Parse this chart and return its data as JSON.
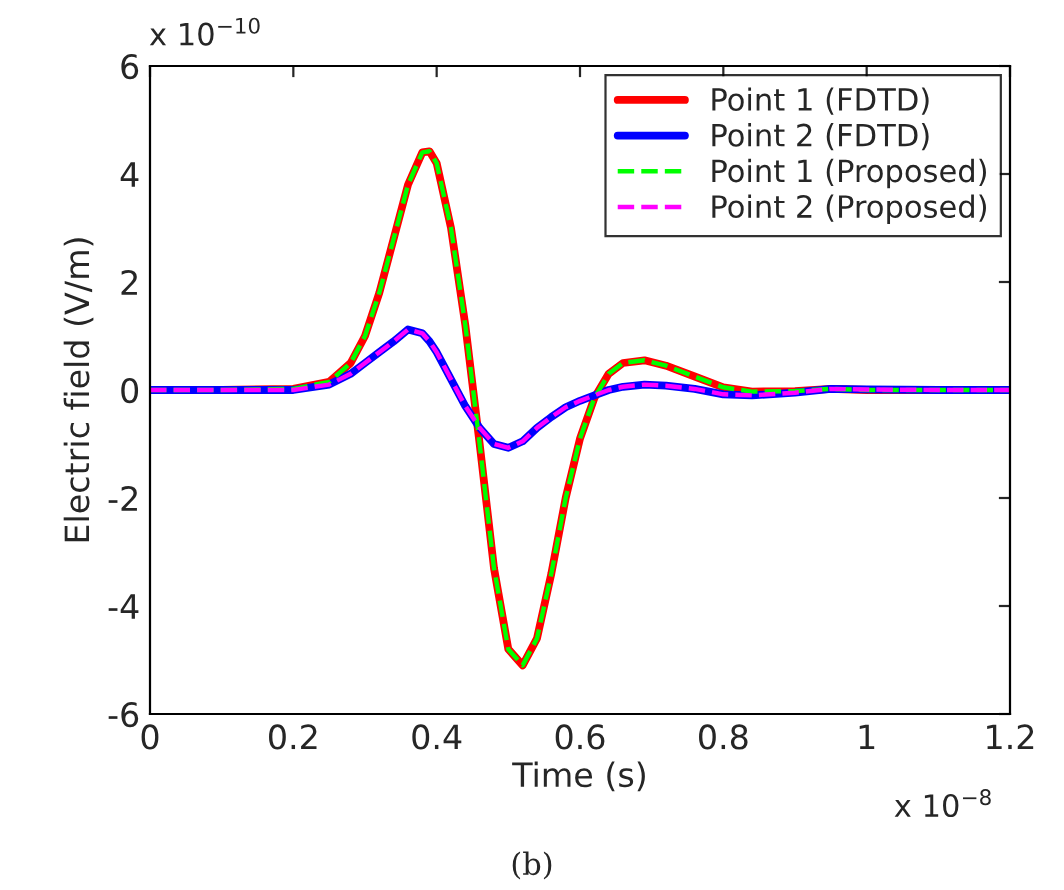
{
  "chart_data": {
    "type": "line",
    "xlabel": "Time (s)",
    "ylabel": "Electric field (V/m)",
    "x": [
      0,
      0.1,
      0.2,
      0.25,
      0.28,
      0.3,
      0.32,
      0.34,
      0.36,
      0.38,
      0.39,
      0.4,
      0.42,
      0.44,
      0.46,
      0.48,
      0.5,
      0.52,
      0.54,
      0.56,
      0.58,
      0.6,
      0.62,
      0.64,
      0.66,
      0.69,
      0.72,
      0.76,
      0.8,
      0.84,
      0.9,
      0.95,
      1.0,
      1.1,
      1.2
    ],
    "series": [
      {
        "name": "Point 1 (FDTD)",
        "color": "#ff0000",
        "line_style": "solid",
        "values": [
          0,
          0,
          0.02,
          0.15,
          0.5,
          1.0,
          1.8,
          2.8,
          3.8,
          4.4,
          4.42,
          4.2,
          3.0,
          1.2,
          -1.0,
          -3.3,
          -4.8,
          -5.1,
          -4.6,
          -3.4,
          -2.0,
          -0.9,
          -0.15,
          0.3,
          0.5,
          0.55,
          0.45,
          0.25,
          0.05,
          -0.03,
          -0.02,
          0.02,
          0,
          0,
          0
        ]
      },
      {
        "name": "Point 2 (FDTD)",
        "color": "#0000ff",
        "line_style": "solid",
        "values": [
          0,
          0,
          0,
          0.1,
          0.3,
          0.5,
          0.7,
          0.9,
          1.12,
          1.05,
          0.9,
          0.7,
          0.2,
          -0.3,
          -0.7,
          -1.0,
          -1.07,
          -0.95,
          -0.7,
          -0.5,
          -0.32,
          -0.2,
          -0.1,
          0.0,
          0.06,
          0.1,
          0.08,
          0.02,
          -0.08,
          -0.1,
          -0.05,
          0.02,
          0.01,
          0,
          0
        ]
      },
      {
        "name": "Point 1 (Proposed)",
        "color": "#00ff00",
        "line_style": "dashed",
        "values": [
          0,
          0,
          0.02,
          0.15,
          0.5,
          1.0,
          1.8,
          2.8,
          3.8,
          4.4,
          4.42,
          4.2,
          3.0,
          1.2,
          -1.0,
          -3.3,
          -4.8,
          -5.1,
          -4.6,
          -3.4,
          -2.0,
          -0.9,
          -0.15,
          0.3,
          0.5,
          0.55,
          0.45,
          0.25,
          0.05,
          -0.03,
          -0.02,
          0.02,
          0,
          0,
          0
        ]
      },
      {
        "name": "Point 2 (Proposed)",
        "color": "#ff00ff",
        "line_style": "dashed",
        "values": [
          0,
          0,
          0,
          0.1,
          0.3,
          0.5,
          0.7,
          0.9,
          1.12,
          1.05,
          0.9,
          0.7,
          0.2,
          -0.3,
          -0.7,
          -1.0,
          -1.07,
          -0.95,
          -0.7,
          -0.5,
          -0.32,
          -0.2,
          -0.1,
          0.0,
          0.06,
          0.1,
          0.08,
          0.02,
          -0.08,
          -0.1,
          -0.05,
          0.02,
          0.01,
          0,
          0
        ]
      }
    ],
    "xlim": [
      0,
      1.2
    ],
    "xticks": [
      0,
      0.2,
      0.4,
      0.6,
      0.8,
      1,
      1.2
    ],
    "ylim": [
      -6,
      6
    ],
    "yticks": [
      -6,
      -4,
      -2,
      0,
      2,
      4,
      6
    ],
    "legend": "top right",
    "grid": false,
    "annotations": [
      "x 10$^{−10}$",
      "x 10$^{−8}$",
      "(b)"
    ]
  }
}
